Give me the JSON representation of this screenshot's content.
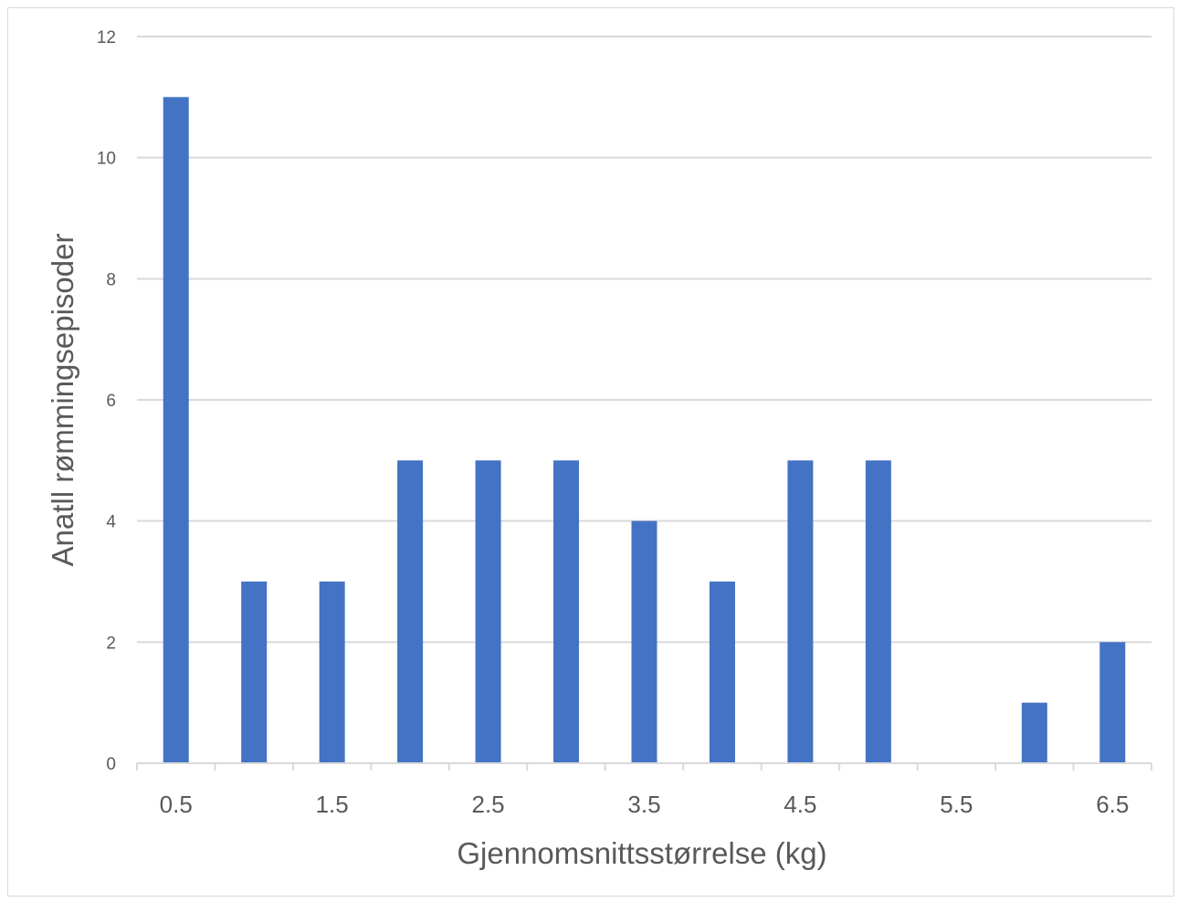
{
  "chart_data": {
    "type": "bar",
    "xlabel": "Gjennomsnittsstørrelse (kg)",
    "ylabel": "Anatll rømmingsepisoder",
    "ylim": [
      0,
      12
    ],
    "yticks": [
      "0",
      "2",
      "4",
      "6",
      "8",
      "10",
      "12"
    ],
    "categories": [
      "0.5",
      "1",
      "1.5",
      "2",
      "2.5",
      "3",
      "3.5",
      "4",
      "4.5",
      "5",
      "5.5",
      "6",
      "6.5"
    ],
    "xtick_labels_shown": [
      "0.5",
      "1.5",
      "2.5",
      "3.5",
      "4.5",
      "5.5",
      "6.5"
    ],
    "values": [
      11,
      3,
      3,
      5,
      5,
      5,
      4,
      3,
      5,
      5,
      0,
      1,
      2
    ],
    "grid": true,
    "legend": "none",
    "bar_color": "#4472C4",
    "grid_color": "#D9D9D9"
  }
}
